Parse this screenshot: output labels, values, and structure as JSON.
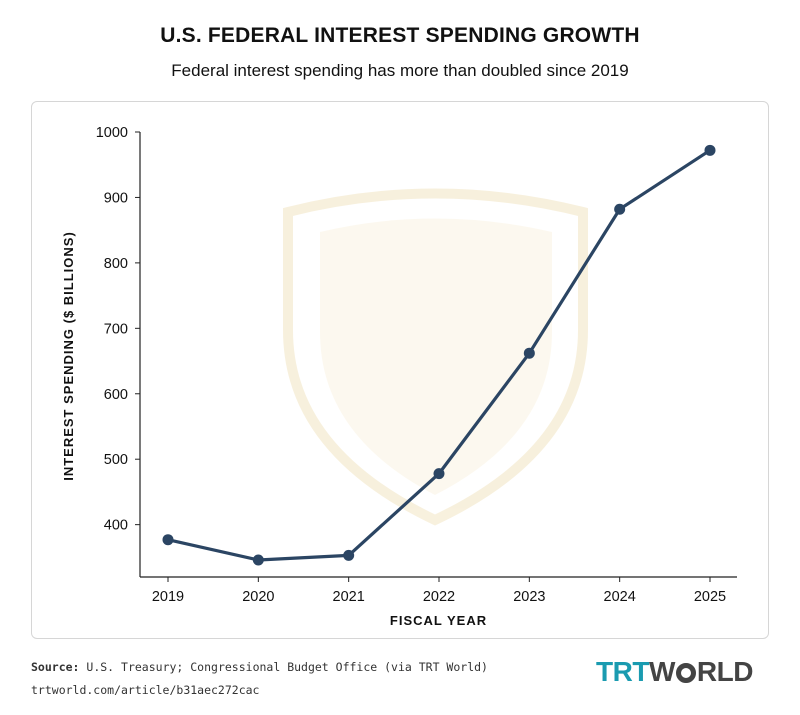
{
  "chart_data": {
    "type": "line",
    "title": "U.S. FEDERAL INTEREST SPENDING GROWTH",
    "subtitle": "Federal interest spending has more than doubled since 2019",
    "xlabel": "FISCAL YEAR",
    "ylabel": "INTEREST SPENDING ($ BILLIONS)",
    "categories": [
      "2019",
      "2020",
      "2021",
      "2022",
      "2023",
      "2024",
      "2025"
    ],
    "values": [
      377,
      346,
      353,
      478,
      662,
      882,
      972
    ],
    "yticks": [
      400,
      500,
      600,
      700,
      800,
      900,
      1000
    ],
    "ylim": [
      320,
      1000
    ],
    "grid": false,
    "line_color": "#2b4563",
    "source_label": "Source:",
    "source_text": "U.S. Treasury; Congressional Budget Office (via TRT World)",
    "url": "trtworld.com/article/b31aec272cac"
  },
  "logo": {
    "trt": "TRT",
    "w": "W",
    "rld": "RLD"
  }
}
